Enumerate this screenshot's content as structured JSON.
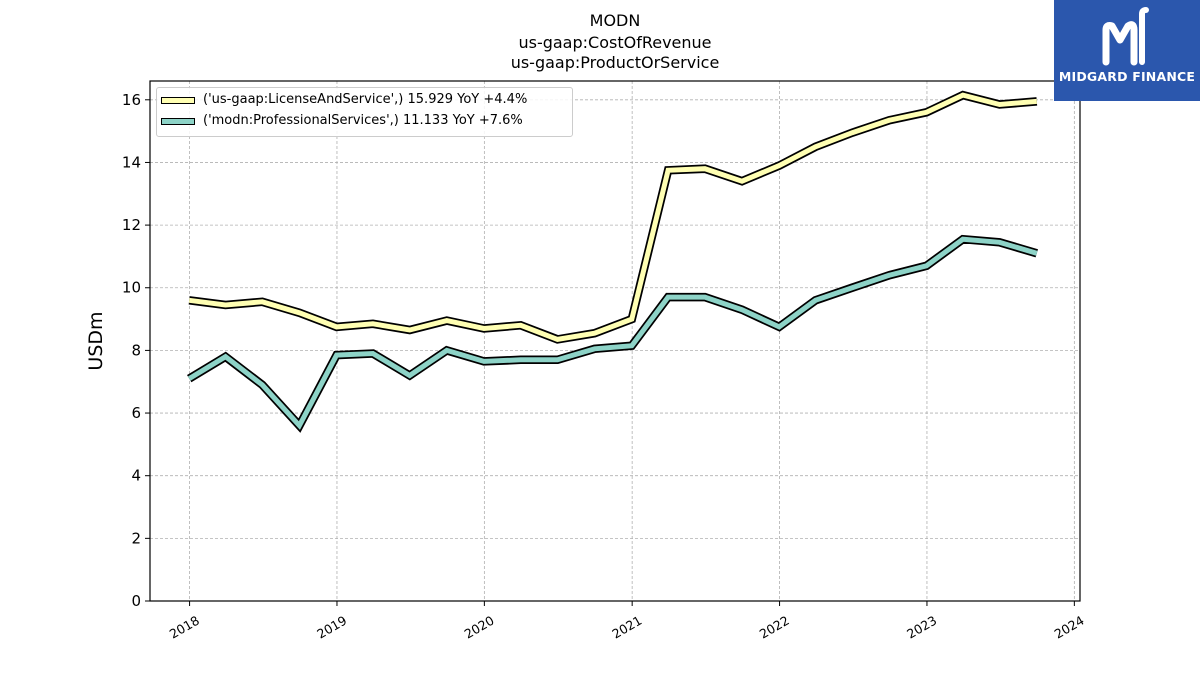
{
  "header": {
    "title_lines": [
      "MODN",
      "us-gaap:CostOfRevenue",
      "us-gaap:ProductOrService"
    ]
  },
  "logo": {
    "text": "MIDGARD FINANCE",
    "background": "#2b57ad"
  },
  "chart_data": {
    "type": "line",
    "title": "MODN\nus-gaap:CostOfRevenue\nus-gaap:ProductOrService",
    "xlabel": "",
    "ylabel": "USDm",
    "ylim": [
      0,
      16.6
    ],
    "yticks": [
      0,
      2,
      4,
      6,
      8,
      10,
      12,
      14,
      16
    ],
    "xlim": [
      "2017-09-25",
      "2024-01-15"
    ],
    "xtick_labels": [
      "2018",
      "2019",
      "2020",
      "2021",
      "2022",
      "2023",
      "2024"
    ],
    "grid": true,
    "legend_position": "top-left",
    "x": [
      "2017-12-31",
      "2018-03-31",
      "2018-06-30",
      "2018-09-30",
      "2018-12-31",
      "2019-03-31",
      "2019-06-30",
      "2019-09-30",
      "2019-12-31",
      "2020-03-31",
      "2020-06-30",
      "2020-09-30",
      "2020-12-31",
      "2021-03-31",
      "2021-06-30",
      "2021-09-30",
      "2021-12-31",
      "2022-03-31",
      "2022-06-30",
      "2022-09-30",
      "2022-12-31",
      "2023-03-31",
      "2023-06-30",
      "2023-09-30"
    ],
    "series": [
      {
        "name": "('us-gaap:LicenseAndService',) 15.929 YoY +4.4%",
        "color": "#ffffb3",
        "values": [
          9.6,
          9.45,
          9.55,
          9.2,
          8.75,
          8.85,
          8.65,
          8.95,
          8.7,
          8.8,
          8.35,
          8.55,
          9.0,
          13.75,
          13.8,
          13.4,
          13.9,
          14.5,
          14.95,
          15.35,
          15.6,
          16.15,
          15.85,
          15.95
        ]
      },
      {
        "name": "('modn:ProfessionalServices',) 11.133 YoY +7.6%",
        "color": "#8dd3c7",
        "values": [
          7.1,
          7.8,
          6.9,
          5.6,
          7.85,
          7.9,
          7.2,
          8.0,
          7.65,
          7.7,
          7.7,
          8.05,
          8.15,
          9.7,
          9.7,
          9.3,
          8.75,
          9.6,
          10.0,
          10.4,
          10.7,
          11.55,
          11.45,
          11.1
        ]
      }
    ]
  }
}
